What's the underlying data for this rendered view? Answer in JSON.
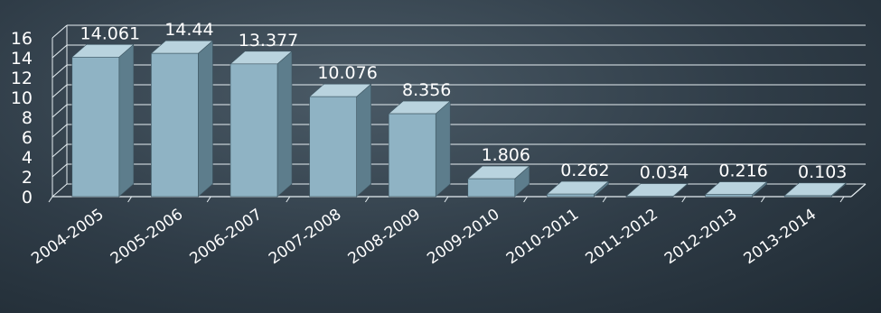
{
  "chart_data": {
    "type": "bar",
    "title": "",
    "xlabel": "",
    "ylabel": "",
    "categories": [
      "2004-2005",
      "2005-2006",
      "2006-2007",
      "2007-2008",
      "2008-2009",
      "2009-2010",
      "2010-2011",
      "2011-2012",
      "2012-2013",
      "2013-2014"
    ],
    "values": [
      14.061,
      14.44,
      13.377,
      10.076,
      8.356,
      1.806,
      0.262,
      0.034,
      0.216,
      0.103
    ],
    "value_labels": [
      "14.061",
      "14.44",
      "13.377",
      "10.076",
      "8.356",
      "1.806",
      "0.262",
      "0.034",
      "0.216",
      "0.103"
    ],
    "ylim": [
      0,
      16
    ],
    "yticks": [
      "0",
      "2",
      "4",
      "6",
      "8",
      "10",
      "12",
      "14",
      "16"
    ],
    "grid": true,
    "style_3d": true,
    "colors": {
      "bar_front": "#8fb3c4",
      "bar_side": "#5d7d8c",
      "bar_top": "#b9d3de",
      "grid": "#e6eef2",
      "text": "#ffffff"
    }
  }
}
